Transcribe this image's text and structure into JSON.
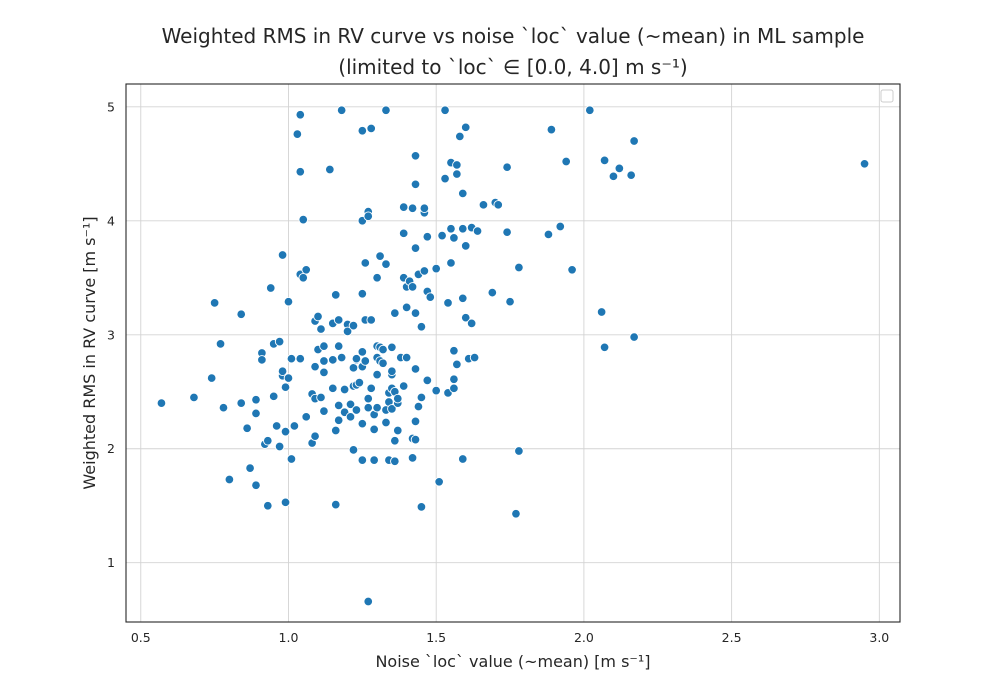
{
  "chart_data": {
    "type": "scatter",
    "title_line1": "Weighted RMS in RV curve vs noise `loc` value (~mean) in ML sample",
    "title_line2": "(limited to `loc` ∈ [0.0, 4.0] m s⁻¹)",
    "xlabel": "Noise `loc` value (~mean) [m s⁻¹]",
    "ylabel": "Weighted RMS in RV curve [m s⁻¹]",
    "xlim": [
      0.45,
      3.07
    ],
    "ylim": [
      0.48,
      5.2
    ],
    "xticks": [
      0.5,
      1.0,
      1.5,
      2.0,
      2.5,
      3.0
    ],
    "xtick_labels": [
      "0.5",
      "1.0",
      "1.5",
      "2.0",
      "2.5",
      "3.0"
    ],
    "yticks": [
      1,
      2,
      3,
      4,
      5
    ],
    "ytick_labels": [
      "1",
      "2",
      "3",
      "4",
      "5"
    ],
    "grid": true,
    "legend": "top-right (empty)",
    "point_color": "#1f77b4",
    "points": [
      [
        0.57,
        2.4
      ],
      [
        0.68,
        2.45
      ],
      [
        0.74,
        2.62
      ],
      [
        0.75,
        3.28
      ],
      [
        0.77,
        2.92
      ],
      [
        0.78,
        2.36
      ],
      [
        0.8,
        1.73
      ],
      [
        0.84,
        2.4
      ],
      [
        0.84,
        3.18
      ],
      [
        0.86,
        2.18
      ],
      [
        0.87,
        1.83
      ],
      [
        0.89,
        2.31
      ],
      [
        0.89,
        2.43
      ],
      [
        0.89,
        1.68
      ],
      [
        0.91,
        2.84
      ],
      [
        0.91,
        2.78
      ],
      [
        0.92,
        2.04
      ],
      [
        0.93,
        1.5
      ],
      [
        0.93,
        2.07
      ],
      [
        0.94,
        3.41
      ],
      [
        0.95,
        2.92
      ],
      [
        0.95,
        2.46
      ],
      [
        0.96,
        2.2
      ],
      [
        0.97,
        2.94
      ],
      [
        0.97,
        2.02
      ],
      [
        0.98,
        3.7
      ],
      [
        0.98,
        2.64
      ],
      [
        0.98,
        2.68
      ],
      [
        0.99,
        2.15
      ],
      [
        0.99,
        2.54
      ],
      [
        0.99,
        1.53
      ],
      [
        1.0,
        3.29
      ],
      [
        1.0,
        2.62
      ],
      [
        1.01,
        2.79
      ],
      [
        1.01,
        1.91
      ],
      [
        1.02,
        2.2
      ],
      [
        1.03,
        4.76
      ],
      [
        1.04,
        4.43
      ],
      [
        1.04,
        4.93
      ],
      [
        1.04,
        2.79
      ],
      [
        1.04,
        3.53
      ],
      [
        1.05,
        4.01
      ],
      [
        1.05,
        3.5
      ],
      [
        1.06,
        3.57
      ],
      [
        1.06,
        2.28
      ],
      [
        1.08,
        2.05
      ],
      [
        1.08,
        2.48
      ],
      [
        1.09,
        3.12
      ],
      [
        1.09,
        2.72
      ],
      [
        1.09,
        2.44
      ],
      [
        1.09,
        2.11
      ],
      [
        1.1,
        3.16
      ],
      [
        1.1,
        2.87
      ],
      [
        1.11,
        3.05
      ],
      [
        1.11,
        2.45
      ],
      [
        1.12,
        2.67
      ],
      [
        1.12,
        2.9
      ],
      [
        1.12,
        2.33
      ],
      [
        1.12,
        2.77
      ],
      [
        1.14,
        4.45
      ],
      [
        1.15,
        3.1
      ],
      [
        1.15,
        2.78
      ],
      [
        1.15,
        2.53
      ],
      [
        1.16,
        3.35
      ],
      [
        1.16,
        1.51
      ],
      [
        1.16,
        2.16
      ],
      [
        1.17,
        2.38
      ],
      [
        1.17,
        2.9
      ],
      [
        1.17,
        2.25
      ],
      [
        1.17,
        3.13
      ],
      [
        1.18,
        4.97
      ],
      [
        1.18,
        2.8
      ],
      [
        1.19,
        2.32
      ],
      [
        1.19,
        2.52
      ],
      [
        1.2,
        3.09
      ],
      [
        1.2,
        3.03
      ],
      [
        1.21,
        2.28
      ],
      [
        1.21,
        2.39
      ],
      [
        1.22,
        1.99
      ],
      [
        1.22,
        2.71
      ],
      [
        1.22,
        2.55
      ],
      [
        1.22,
        3.08
      ],
      [
        1.23,
        2.78
      ],
      [
        1.23,
        2.34
      ],
      [
        1.23,
        2.56
      ],
      [
        1.23,
        2.79
      ],
      [
        1.24,
        2.58
      ],
      [
        1.25,
        4.0
      ],
      [
        1.25,
        4.79
      ],
      [
        1.25,
        3.36
      ],
      [
        1.25,
        2.85
      ],
      [
        1.25,
        2.22
      ],
      [
        1.25,
        1.9
      ],
      [
        1.25,
        2.72
      ],
      [
        1.26,
        3.13
      ],
      [
        1.26,
        2.77
      ],
      [
        1.26,
        3.63
      ],
      [
        1.27,
        4.08
      ],
      [
        1.27,
        4.04
      ],
      [
        1.27,
        2.44
      ],
      [
        1.27,
        2.36
      ],
      [
        1.27,
        0.66
      ],
      [
        1.28,
        4.81
      ],
      [
        1.28,
        2.53
      ],
      [
        1.28,
        3.13
      ],
      [
        1.29,
        2.17
      ],
      [
        1.29,
        1.9
      ],
      [
        1.29,
        2.3
      ],
      [
        1.3,
        3.5
      ],
      [
        1.3,
        2.65
      ],
      [
        1.3,
        2.36
      ],
      [
        1.3,
        2.9
      ],
      [
        1.3,
        2.8
      ],
      [
        1.31,
        3.69
      ],
      [
        1.31,
        2.77
      ],
      [
        1.31,
        2.89
      ],
      [
        1.32,
        2.75
      ],
      [
        1.32,
        2.87
      ],
      [
        1.33,
        4.97
      ],
      [
        1.33,
        3.62
      ],
      [
        1.33,
        2.34
      ],
      [
        1.33,
        2.23
      ],
      [
        1.34,
        2.41
      ],
      [
        1.34,
        2.49
      ],
      [
        1.34,
        1.9
      ],
      [
        1.35,
        2.65
      ],
      [
        1.35,
        2.53
      ],
      [
        1.35,
        2.89
      ],
      [
        1.35,
        2.35
      ],
      [
        1.35,
        2.68
      ],
      [
        1.36,
        3.19
      ],
      [
        1.36,
        2.5
      ],
      [
        1.36,
        2.07
      ],
      [
        1.36,
        1.89
      ],
      [
        1.37,
        2.16
      ],
      [
        1.37,
        2.4
      ],
      [
        1.37,
        2.44
      ],
      [
        1.38,
        2.8
      ],
      [
        1.39,
        3.5
      ],
      [
        1.39,
        2.55
      ],
      [
        1.39,
        3.89
      ],
      [
        1.39,
        4.12
      ],
      [
        1.4,
        3.42
      ],
      [
        1.4,
        3.24
      ],
      [
        1.4,
        2.8
      ],
      [
        1.41,
        3.47
      ],
      [
        1.42,
        4.11
      ],
      [
        1.42,
        3.42
      ],
      [
        1.42,
        2.09
      ],
      [
        1.42,
        1.92
      ],
      [
        1.43,
        4.57
      ],
      [
        1.43,
        4.32
      ],
      [
        1.43,
        3.76
      ],
      [
        1.43,
        3.19
      ],
      [
        1.43,
        2.7
      ],
      [
        1.43,
        2.24
      ],
      [
        1.43,
        2.08
      ],
      [
        1.44,
        3.53
      ],
      [
        1.44,
        2.37
      ],
      [
        1.45,
        3.07
      ],
      [
        1.45,
        2.45
      ],
      [
        1.45,
        1.49
      ],
      [
        1.46,
        4.07
      ],
      [
        1.46,
        4.11
      ],
      [
        1.46,
        3.56
      ],
      [
        1.47,
        3.38
      ],
      [
        1.47,
        3.86
      ],
      [
        1.47,
        2.6
      ],
      [
        1.48,
        3.33
      ],
      [
        1.5,
        2.51
      ],
      [
        1.5,
        3.58
      ],
      [
        1.51,
        1.71
      ],
      [
        1.52,
        3.87
      ],
      [
        1.53,
        4.97
      ],
      [
        1.53,
        4.37
      ],
      [
        1.54,
        2.49
      ],
      [
        1.54,
        3.28
      ],
      [
        1.55,
        3.93
      ],
      [
        1.55,
        4.51
      ],
      [
        1.55,
        3.63
      ],
      [
        1.56,
        3.85
      ],
      [
        1.56,
        2.61
      ],
      [
        1.56,
        2.53
      ],
      [
        1.56,
        2.86
      ],
      [
        1.57,
        2.74
      ],
      [
        1.57,
        4.41
      ],
      [
        1.57,
        4.49
      ],
      [
        1.58,
        4.74
      ],
      [
        1.59,
        4.24
      ],
      [
        1.59,
        3.93
      ],
      [
        1.59,
        3.32
      ],
      [
        1.59,
        1.91
      ],
      [
        1.6,
        4.82
      ],
      [
        1.6,
        3.78
      ],
      [
        1.6,
        3.15
      ],
      [
        1.61,
        2.79
      ],
      [
        1.62,
        3.94
      ],
      [
        1.62,
        3.1
      ],
      [
        1.63,
        2.8
      ],
      [
        1.64,
        3.91
      ],
      [
        1.66,
        4.14
      ],
      [
        1.69,
        3.37
      ],
      [
        1.7,
        4.16
      ],
      [
        1.71,
        4.14
      ],
      [
        1.74,
        3.9
      ],
      [
        1.74,
        4.47
      ],
      [
        1.75,
        3.29
      ],
      [
        1.77,
        1.43
      ],
      [
        1.78,
        1.98
      ],
      [
        1.78,
        3.59
      ],
      [
        1.88,
        3.88
      ],
      [
        1.89,
        4.8
      ],
      [
        1.92,
        3.95
      ],
      [
        1.94,
        4.52
      ],
      [
        1.96,
        3.57
      ],
      [
        2.02,
        4.97
      ],
      [
        2.06,
        3.2
      ],
      [
        2.07,
        4.53
      ],
      [
        2.07,
        2.89
      ],
      [
        2.1,
        4.39
      ],
      [
        2.12,
        4.46
      ],
      [
        2.16,
        4.4
      ],
      [
        2.17,
        4.7
      ],
      [
        2.17,
        2.98
      ],
      [
        2.95,
        4.5
      ]
    ]
  }
}
